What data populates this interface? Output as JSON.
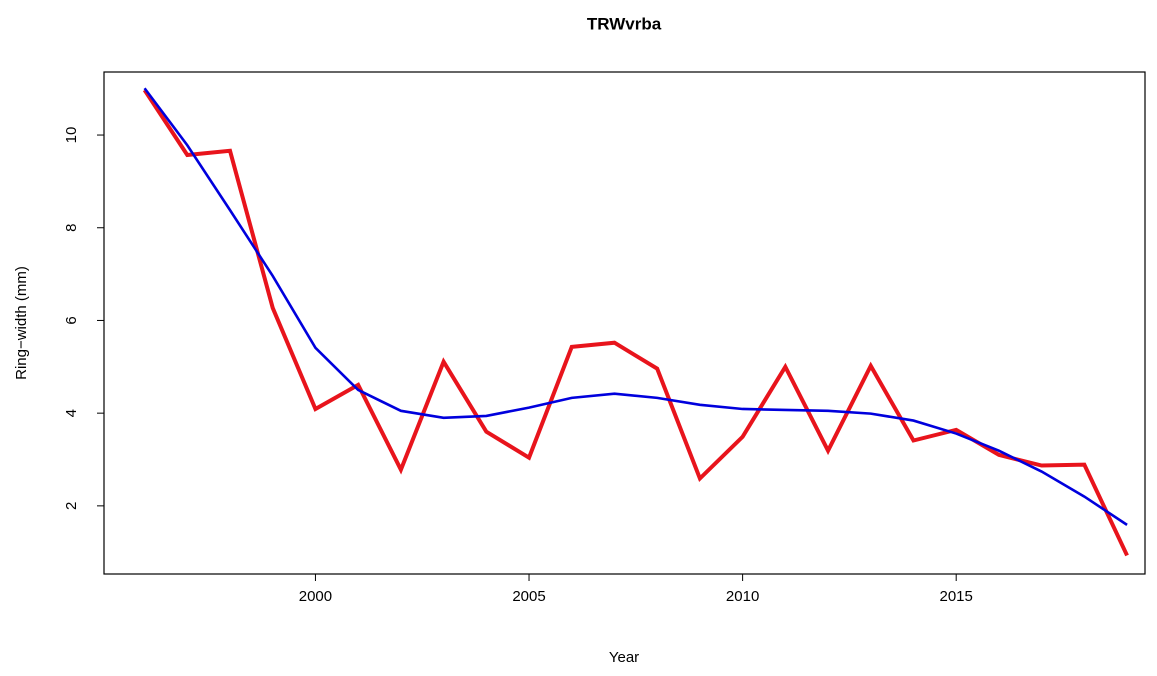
{
  "chart_data": {
    "type": "line",
    "title": "TRWvrba",
    "x_label": "Year",
    "y_label": "Ring−width (mm)",
    "x": [
      1996,
      1997,
      1998,
      1999,
      2000,
      2001,
      2002,
      2003,
      2004,
      2005,
      2006,
      2007,
      2008,
      2009,
      2010,
      2011,
      2012,
      2013,
      2014,
      2015,
      2016,
      2017,
      2018,
      2019
    ],
    "series": [
      {
        "color": "#e8141c",
        "values": [
          10.97,
          9.57,
          9.66,
          6.27,
          4.09,
          4.61,
          2.78,
          5.11,
          3.6,
          3.04,
          5.43,
          5.52,
          4.96,
          2.59,
          3.49,
          5.0,
          3.19,
          5.02,
          3.41,
          3.64,
          3.1,
          2.87,
          2.89,
          0.93
        ]
      },
      {
        "color": "#0000dd",
        "values": [
          11.01,
          9.78,
          8.38,
          6.96,
          5.41,
          4.5,
          4.05,
          3.9,
          3.94,
          4.12,
          4.33,
          4.42,
          4.33,
          4.18,
          4.09,
          4.07,
          4.05,
          3.99,
          3.84,
          3.56,
          3.19,
          2.74,
          2.2,
          1.59
        ]
      }
    ],
    "xlim": [
      1995.05,
      2019.42
    ],
    "xticks": [
      2000,
      2005,
      2010,
      2015
    ],
    "ylim": [
      0.53,
      11.36
    ],
    "yticks": [
      2,
      4,
      6,
      8,
      10
    ]
  }
}
